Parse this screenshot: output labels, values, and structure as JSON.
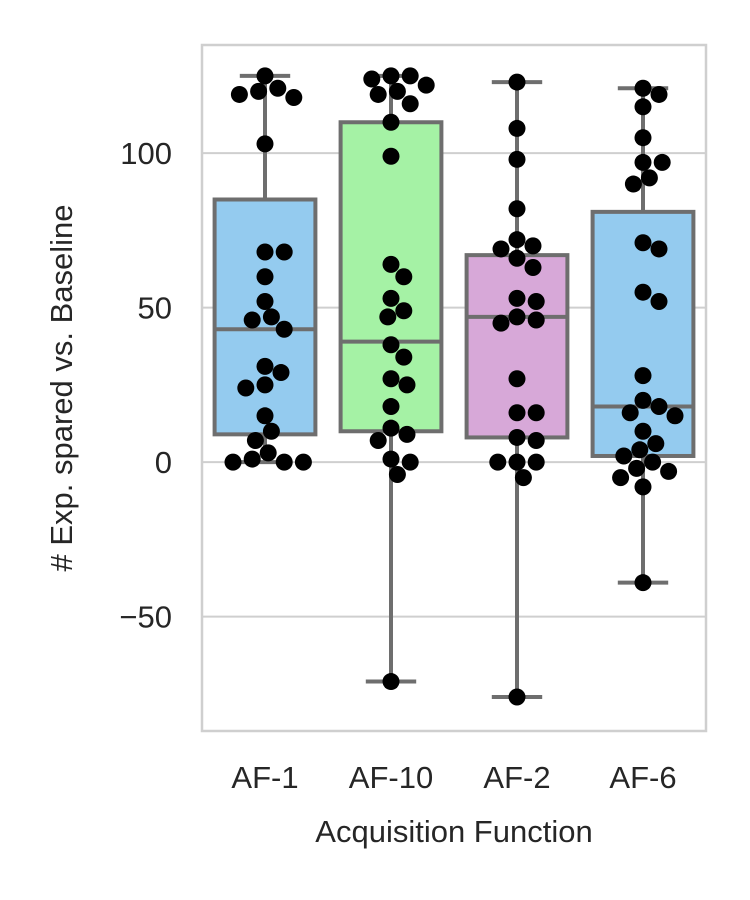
{
  "chart_data": {
    "type": "box",
    "title": "",
    "xlabel": "Acquisition Function",
    "ylabel": "# Exp. spared vs. Baseline",
    "ylim": [
      -87,
      135
    ],
    "yticks": [
      -50,
      0,
      50,
      100
    ],
    "grid": "horizontal",
    "categories": [
      "AF-1",
      "AF-10",
      "AF-2",
      "AF-6"
    ],
    "colors": {
      "AF-1": "#94cbef",
      "AF-10": "#a5f2a5",
      "AF-2": "#d7a8d8",
      "AF-6": "#94cbef",
      "box_edge": "#6e6e6e",
      "points": "#000000",
      "grid": "#cfcfcf",
      "frame": "#cfcfcf"
    },
    "boxes": [
      {
        "category": "AF-1",
        "whisker_low": 0,
        "q1": 9,
        "median": 43,
        "q3": 85,
        "whisker_high": 125
      },
      {
        "category": "AF-10",
        "whisker_low": -71,
        "q1": 10,
        "median": 39,
        "q3": 110,
        "whisker_high": 125
      },
      {
        "category": "AF-2",
        "whisker_low": -76,
        "q1": 8,
        "median": 47,
        "q3": 67,
        "whisker_high": 123
      },
      {
        "category": "AF-6",
        "whisker_low": -39,
        "q1": 2,
        "median": 18,
        "q3": 81,
        "whisker_high": 121
      }
    ],
    "points": [
      {
        "category": "AF-1",
        "values": [
          125,
          121,
          120,
          119,
          118,
          103,
          68,
          68,
          60,
          52,
          47,
          46,
          43,
          31,
          29,
          25,
          24,
          15,
          10,
          7,
          3,
          1,
          0,
          0,
          0
        ]
      },
      {
        "category": "AF-10",
        "values": [
          125,
          125,
          124,
          122,
          120,
          119,
          116,
          110,
          99,
          64,
          60,
          53,
          49,
          47,
          38,
          34,
          27,
          25,
          18,
          11,
          9,
          7,
          1,
          0,
          -4,
          -71
        ]
      },
      {
        "category": "AF-2",
        "values": [
          123,
          108,
          98,
          82,
          72,
          70,
          69,
          66,
          63,
          53,
          52,
          47,
          46,
          45,
          27,
          16,
          16,
          8,
          7,
          0,
          0,
          0,
          -5,
          -76
        ]
      },
      {
        "category": "AF-6",
        "values": [
          121,
          119,
          115,
          105,
          97,
          97,
          92,
          90,
          71,
          69,
          55,
          52,
          28,
          20,
          18,
          16,
          15,
          10,
          6,
          4,
          2,
          0,
          -2,
          -3,
          -5,
          -8,
          -39
        ]
      }
    ]
  }
}
